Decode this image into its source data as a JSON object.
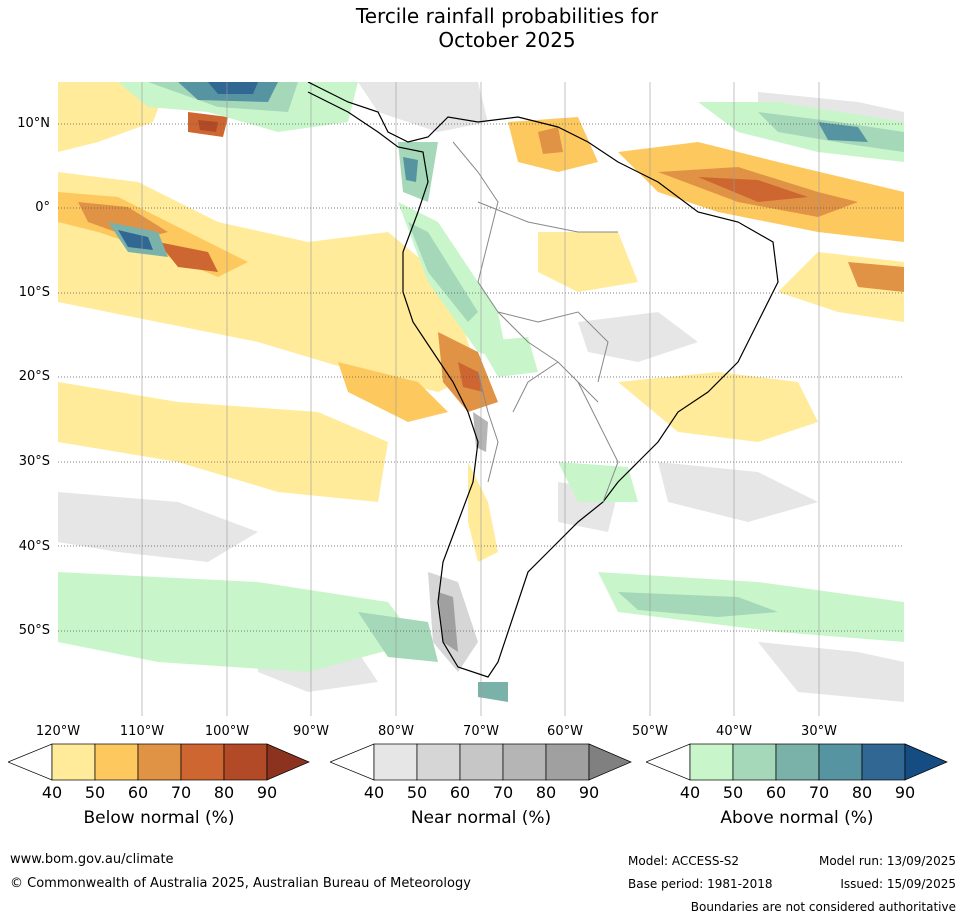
{
  "title_line1": "Tercile rainfall probabilities for",
  "title_line2": "October 2025",
  "lat_labels": [
    "10°N",
    "0°",
    "10°S",
    "20°S",
    "30°S",
    "40°S",
    "50°S"
  ],
  "lon_labels": [
    "120°W",
    "110°W",
    "100°W",
    "90°W",
    "80°W",
    "70°W",
    "60°W",
    "50°W",
    "40°W",
    "30°W"
  ],
  "colorbars": [
    {
      "title": "Below normal (%)",
      "ticks": [
        "40",
        "50",
        "60",
        "70",
        "80",
        "90"
      ],
      "colors": [
        "#ffffff",
        "#ffeb99",
        "#fdc95f",
        "#e09345",
        "#cd6631",
        "#b24a27",
        "#8c3320"
      ]
    },
    {
      "title": "Near normal (%)",
      "ticks": [
        "40",
        "50",
        "60",
        "70",
        "80",
        "90"
      ],
      "colors": [
        "#ffffff",
        "#e6e6e6",
        "#d6d6d6",
        "#c6c6c6",
        "#b5b5b5",
        "#a0a0a0",
        "#808080"
      ]
    },
    {
      "title": "Above normal (%)",
      "ticks": [
        "40",
        "50",
        "60",
        "70",
        "80",
        "90"
      ],
      "colors": [
        "#ffffff",
        "#c9f5cb",
        "#a4d8b8",
        "#7ab2aa",
        "#5694a2",
        "#316793",
        "#154d83"
      ]
    }
  ],
  "footer": {
    "website": "www.bom.gov.au/climate",
    "copyright": "© Commonwealth of Australia 2025, Australian Bureau of Meteorology",
    "model": "Model: ACCESS-S2",
    "model_run": "Model run: 13/09/2025",
    "base_period": "Base period: 1981-2018",
    "issued": "Issued: 15/09/2025",
    "boundaries_note": "Boundaries are not considered authoritative"
  }
}
